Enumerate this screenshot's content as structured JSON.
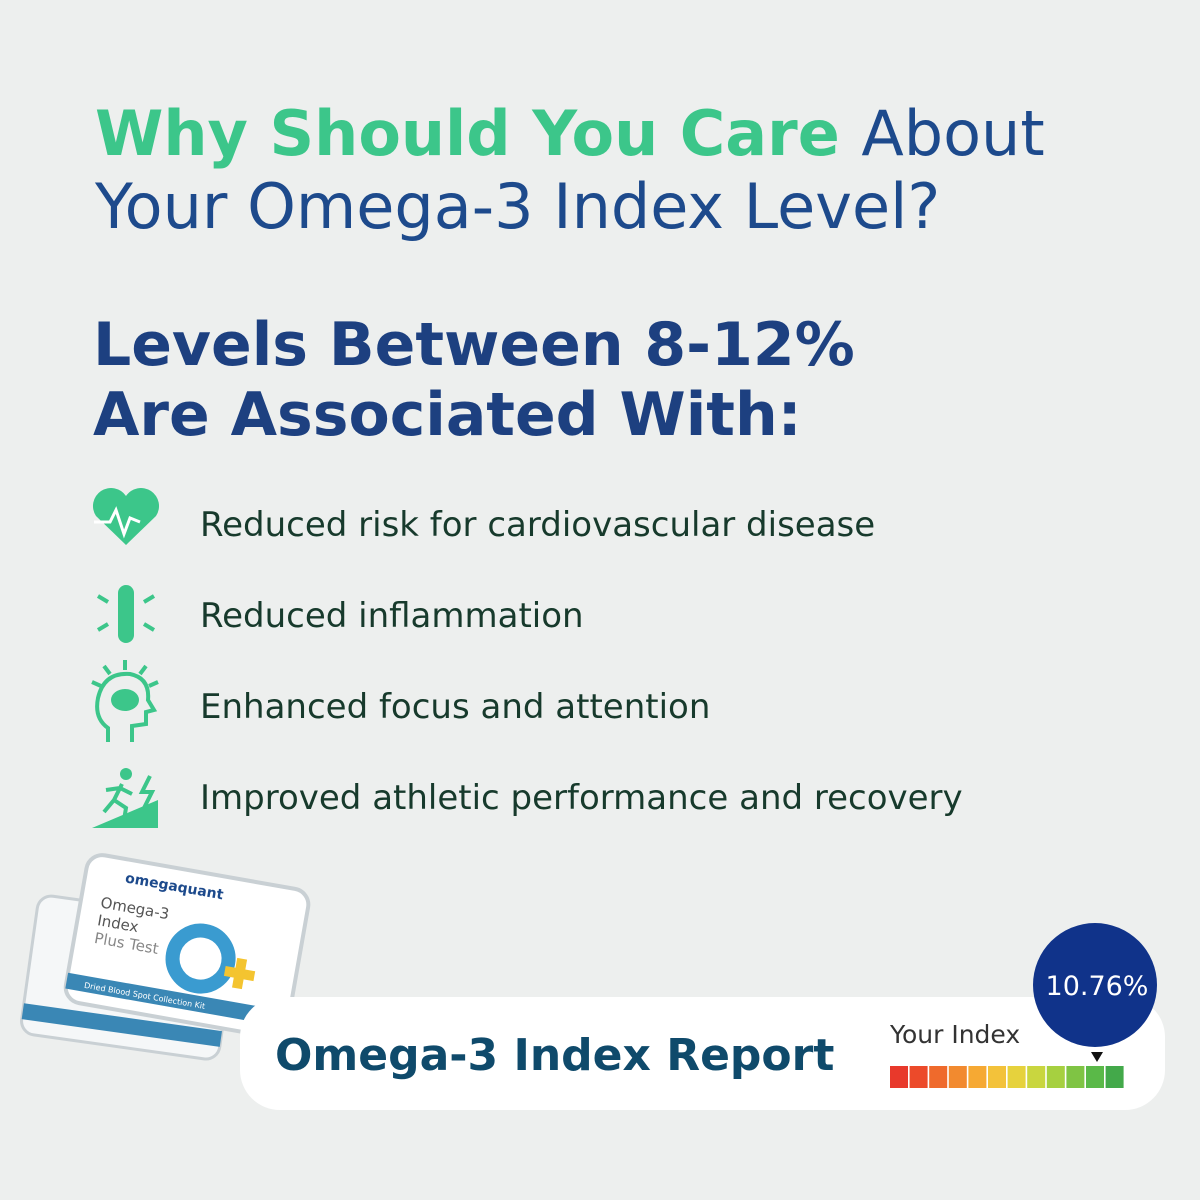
{
  "header": {
    "title_highlight": "Why Should You Care",
    "title_rest_line1": "About",
    "title_line2": "Your Omega-3 Index Level?"
  },
  "subtitle": {
    "line1": "Levels Between 8-12%",
    "line2": "Are Associated With:"
  },
  "benefits": [
    "Reduced risk for cardiovascular disease",
    "Reduced inflammation",
    "Enhanced focus and attention",
    "Improved athletic performance and recovery"
  ],
  "product": {
    "brand": "omegaquant",
    "name_line1": "Omega-3",
    "name_line2": "Index",
    "name_line3": "Plus Test",
    "kit": "Dried Blood Spot Collection Kit"
  },
  "report": {
    "title": "Omega-3 Index Report",
    "your_index": "Your Index",
    "index_value": "10.76%"
  }
}
